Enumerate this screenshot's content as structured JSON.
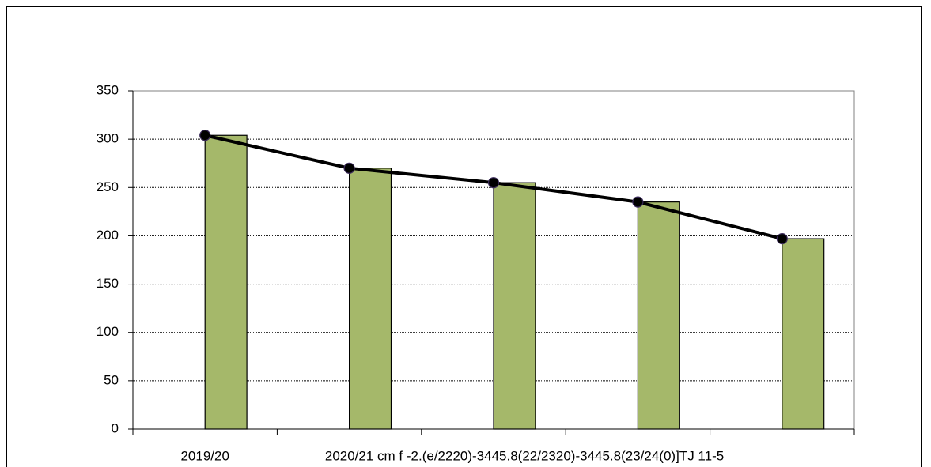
{
  "chart_data": {
    "type": "bar",
    "categories": [
      "2019/20",
      "2020/21 cm f -2.(e/2220)-3445.8(22/2320)-3445.8(23/24(0)]TJ 11-5",
      null,
      null,
      null
    ],
    "series": [
      {
        "type": "bar",
        "color": "#a5b86a",
        "values": [
          304,
          270,
          255,
          235,
          197
        ]
      },
      {
        "type": "line",
        "color": "#000000",
        "values": [
          304,
          270,
          255,
          235,
          197
        ]
      }
    ],
    "ylim": [
      0,
      350
    ],
    "yticks": [
      0,
      50,
      100,
      150,
      200,
      250,
      300,
      350
    ],
    "grid": true
  }
}
